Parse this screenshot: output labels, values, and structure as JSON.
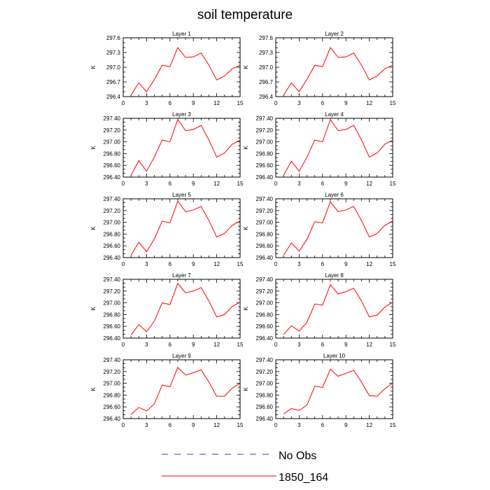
{
  "figure": {
    "title": "soil temperature",
    "legend": [
      {
        "label": "No Obs",
        "color": "#3b3bb0",
        "style": "dashed"
      },
      {
        "label": "1850_164",
        "color": "#ff0000",
        "style": "solid"
      }
    ]
  },
  "chart_data": [
    {
      "type": "line",
      "title": "Layer 1",
      "ylabel": "K",
      "xlim": [
        0,
        15
      ],
      "ylim": [
        296.4,
        297.6
      ],
      "xticks": [
        0,
        3,
        6,
        9,
        12,
        15
      ],
      "yticks": [
        296.4,
        296.7,
        297.0,
        297.3,
        297.6
      ],
      "ytick_labels": [
        "296.4",
        "296.7",
        "297.0",
        "297.3",
        "297.6"
      ],
      "x": [
        1,
        2,
        3,
        4,
        5,
        6,
        7,
        8,
        9,
        10,
        11,
        12,
        13,
        14,
        15
      ],
      "series": [
        {
          "name": "1850_164",
          "color": "#ff0000",
          "values": [
            296.43,
            296.68,
            296.5,
            296.75,
            297.04,
            297.01,
            297.4,
            297.2,
            297.21,
            297.29,
            297.04,
            296.74,
            296.82,
            296.97,
            297.04
          ]
        }
      ]
    },
    {
      "type": "line",
      "title": "Layer 2",
      "ylabel": "K",
      "xlim": [
        0,
        15
      ],
      "ylim": [
        296.4,
        297.6
      ],
      "xticks": [
        0,
        3,
        6,
        9,
        12,
        15
      ],
      "yticks": [
        296.4,
        296.7,
        297.0,
        297.3,
        297.6
      ],
      "ytick_labels": [
        "296.4",
        "296.7",
        "297.0",
        "297.3",
        "297.6"
      ],
      "x": [
        1,
        2,
        3,
        4,
        5,
        6,
        7,
        8,
        9,
        10,
        11,
        12,
        13,
        14,
        15
      ],
      "series": [
        {
          "name": "1850_164",
          "color": "#ff0000",
          "values": [
            296.43,
            296.68,
            296.5,
            296.75,
            297.04,
            297.01,
            297.4,
            297.2,
            297.21,
            297.29,
            297.04,
            296.74,
            296.82,
            296.97,
            297.04
          ]
        }
      ]
    },
    {
      "type": "line",
      "title": "Layer 3",
      "ylabel": "K",
      "xlim": [
        0,
        15
      ],
      "ylim": [
        296.4,
        297.4
      ],
      "xticks": [
        0,
        3,
        6,
        9,
        12,
        15
      ],
      "yticks": [
        296.4,
        296.6,
        296.8,
        297.0,
        297.2,
        297.4
      ],
      "ytick_labels": [
        "296.40",
        "296.60",
        "296.80",
        "297.00",
        "297.20",
        "297.40"
      ],
      "x": [
        1,
        2,
        3,
        4,
        5,
        6,
        7,
        8,
        9,
        10,
        11,
        12,
        13,
        14,
        15
      ],
      "series": [
        {
          "name": "1850_164",
          "color": "#ff0000",
          "values": [
            296.43,
            296.68,
            296.5,
            296.74,
            297.03,
            297.0,
            297.38,
            297.19,
            297.21,
            297.28,
            297.03,
            296.74,
            296.81,
            296.96,
            297.03
          ]
        }
      ]
    },
    {
      "type": "line",
      "title": "Layer 4",
      "ylabel": "K",
      "xlim": [
        0,
        15
      ],
      "ylim": [
        296.4,
        297.4
      ],
      "xticks": [
        0,
        3,
        6,
        9,
        12,
        15
      ],
      "yticks": [
        296.4,
        296.6,
        296.8,
        297.0,
        297.2,
        297.4
      ],
      "ytick_labels": [
        "296.40",
        "296.60",
        "296.80",
        "297.00",
        "297.20",
        "297.40"
      ],
      "x": [
        1,
        2,
        3,
        4,
        5,
        6,
        7,
        8,
        9,
        10,
        11,
        12,
        13,
        14,
        15
      ],
      "series": [
        {
          "name": "1850_164",
          "color": "#ff0000",
          "values": [
            296.43,
            296.67,
            296.5,
            296.74,
            297.03,
            297.0,
            297.38,
            297.19,
            297.21,
            297.28,
            297.03,
            296.74,
            296.81,
            296.96,
            297.03
          ]
        }
      ]
    },
    {
      "type": "line",
      "title": "Layer 5",
      "ylabel": "K",
      "xlim": [
        0,
        15
      ],
      "ylim": [
        296.4,
        297.4
      ],
      "xticks": [
        0,
        3,
        6,
        9,
        12,
        15
      ],
      "yticks": [
        296.4,
        296.6,
        296.8,
        297.0,
        297.2,
        297.4
      ],
      "ytick_labels": [
        "296.40",
        "296.60",
        "296.80",
        "297.00",
        "297.20",
        "297.40"
      ],
      "x": [
        1,
        2,
        3,
        4,
        5,
        6,
        7,
        8,
        9,
        10,
        11,
        12,
        13,
        14,
        15
      ],
      "series": [
        {
          "name": "1850_164",
          "color": "#ff0000",
          "values": [
            296.44,
            296.66,
            296.5,
            296.72,
            297.02,
            296.99,
            297.36,
            297.18,
            297.21,
            297.27,
            297.03,
            296.75,
            296.81,
            296.95,
            297.02
          ]
        }
      ]
    },
    {
      "type": "line",
      "title": "Layer 6",
      "ylabel": "K",
      "xlim": [
        0,
        15
      ],
      "ylim": [
        296.4,
        297.4
      ],
      "xticks": [
        0,
        3,
        6,
        9,
        12,
        15
      ],
      "yticks": [
        296.4,
        296.6,
        296.8,
        297.0,
        297.2,
        297.4
      ],
      "ytick_labels": [
        "296.40",
        "296.60",
        "296.80",
        "297.00",
        "297.20",
        "297.40"
      ],
      "x": [
        1,
        2,
        3,
        4,
        5,
        6,
        7,
        8,
        9,
        10,
        11,
        12,
        13,
        14,
        15
      ],
      "series": [
        {
          "name": "1850_164",
          "color": "#ff0000",
          "values": [
            296.44,
            296.65,
            296.51,
            296.71,
            297.01,
            296.99,
            297.35,
            297.18,
            297.21,
            297.27,
            297.03,
            296.75,
            296.81,
            296.95,
            297.02
          ]
        }
      ]
    },
    {
      "type": "line",
      "title": "Layer 7",
      "ylabel": "K",
      "xlim": [
        0,
        15
      ],
      "ylim": [
        296.4,
        297.4
      ],
      "xticks": [
        0,
        3,
        6,
        9,
        12,
        15
      ],
      "yticks": [
        296.4,
        296.6,
        296.8,
        297.0,
        297.2,
        297.4
      ],
      "ytick_labels": [
        "296.40",
        "296.60",
        "296.80",
        "297.00",
        "297.20",
        "297.40"
      ],
      "x": [
        1,
        2,
        3,
        4,
        5,
        6,
        7,
        8,
        9,
        10,
        11,
        12,
        13,
        14,
        15
      ],
      "series": [
        {
          "name": "1850_164",
          "color": "#ff0000",
          "values": [
            296.45,
            296.63,
            296.51,
            296.69,
            297.0,
            296.97,
            297.33,
            297.17,
            297.2,
            297.26,
            297.03,
            296.76,
            296.8,
            296.94,
            297.01
          ]
        }
      ]
    },
    {
      "type": "line",
      "title": "Layer 8",
      "ylabel": "K",
      "xlim": [
        0,
        15
      ],
      "ylim": [
        296.4,
        297.4
      ],
      "xticks": [
        0,
        3,
        6,
        9,
        12,
        15
      ],
      "yticks": [
        296.4,
        296.6,
        296.8,
        297.0,
        297.2,
        297.4
      ],
      "ytick_labels": [
        "296.40",
        "296.60",
        "296.80",
        "297.00",
        "297.20",
        "297.40"
      ],
      "x": [
        1,
        2,
        3,
        4,
        5,
        6,
        7,
        8,
        9,
        10,
        11,
        12,
        13,
        14,
        15
      ],
      "series": [
        {
          "name": "1850_164",
          "color": "#ff0000",
          "values": [
            296.46,
            296.61,
            296.52,
            296.67,
            296.98,
            296.96,
            297.31,
            297.15,
            297.19,
            297.25,
            297.03,
            296.76,
            296.79,
            296.93,
            297.01
          ]
        }
      ]
    },
    {
      "type": "line",
      "title": "Layer 9",
      "ylabel": "K",
      "xlim": [
        0,
        15
      ],
      "ylim": [
        296.4,
        297.4
      ],
      "xticks": [
        0,
        3,
        6,
        9,
        12,
        15
      ],
      "yticks": [
        296.4,
        296.6,
        296.8,
        297.0,
        297.2,
        297.4
      ],
      "ytick_labels": [
        "296.40",
        "296.60",
        "296.80",
        "297.00",
        "297.20",
        "297.40"
      ],
      "x": [
        1,
        2,
        3,
        4,
        5,
        6,
        7,
        8,
        9,
        10,
        11,
        12,
        13,
        14,
        15
      ],
      "series": [
        {
          "name": "1850_164",
          "color": "#ff0000",
          "values": [
            296.47,
            296.59,
            296.53,
            296.65,
            296.97,
            296.94,
            297.27,
            297.14,
            297.18,
            297.23,
            297.02,
            296.78,
            296.78,
            296.92,
            297.0
          ]
        }
      ]
    },
    {
      "type": "line",
      "title": "Layer 10",
      "ylabel": "K",
      "xlim": [
        0,
        15
      ],
      "ylim": [
        296.4,
        297.4
      ],
      "xticks": [
        0,
        3,
        6,
        9,
        12,
        15
      ],
      "yticks": [
        296.4,
        296.6,
        296.8,
        297.0,
        297.2,
        297.4
      ],
      "ytick_labels": [
        "296.40",
        "296.60",
        "296.80",
        "297.00",
        "297.20",
        "297.40"
      ],
      "x": [
        1,
        2,
        3,
        4,
        5,
        6,
        7,
        8,
        9,
        10,
        11,
        12,
        13,
        14,
        15
      ],
      "series": [
        {
          "name": "1850_164",
          "color": "#ff0000",
          "values": [
            296.48,
            296.57,
            296.54,
            296.63,
            296.95,
            296.93,
            297.24,
            297.12,
            297.17,
            297.22,
            297.02,
            296.79,
            296.78,
            296.91,
            297.0
          ]
        }
      ]
    }
  ]
}
